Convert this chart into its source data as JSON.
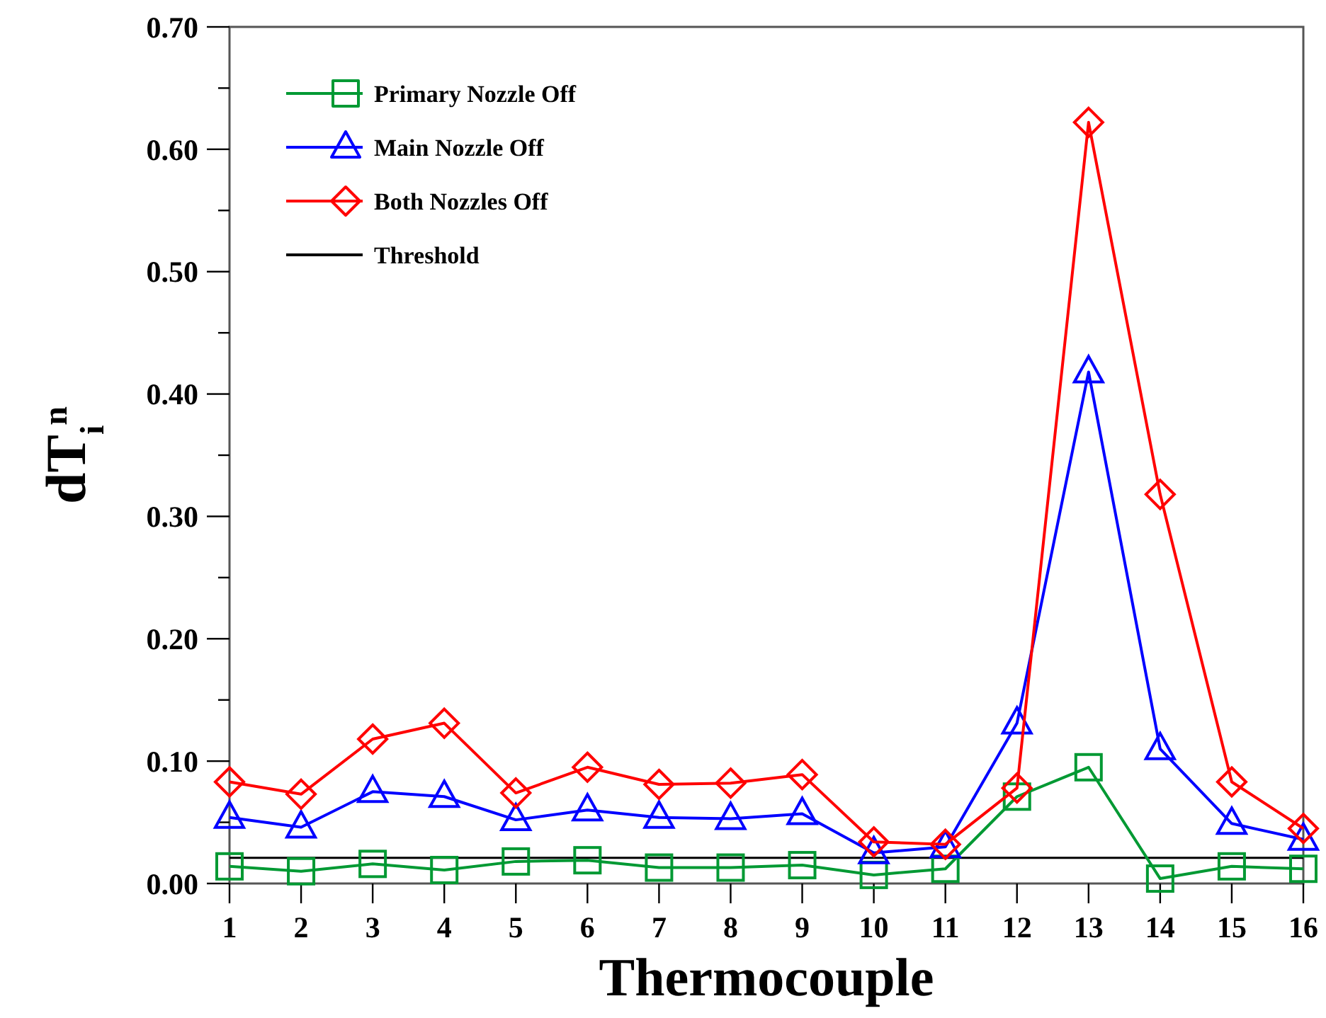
{
  "chart_data": {
    "type": "line",
    "xlabel": "Thermocouple",
    "ylabel": "dT$_{i}$$^{n}$",
    "x": [
      1,
      2,
      3,
      4,
      5,
      6,
      7,
      8,
      9,
      10,
      11,
      12,
      13,
      14,
      15,
      16
    ],
    "xlim": [
      1,
      16
    ],
    "xticks": [
      1,
      2,
      3,
      4,
      5,
      6,
      7,
      8,
      9,
      10,
      11,
      12,
      13,
      14,
      15,
      16
    ],
    "ylim": [
      0,
      0.7
    ],
    "yticks": [
      {
        "value": 0,
        "label": "0.00"
      },
      {
        "value": 0.05,
        "label": null
      },
      {
        "value": 0.1,
        "label": "0.10"
      },
      {
        "value": 0.15,
        "label": null
      },
      {
        "value": 0.2,
        "label": "0.20"
      },
      {
        "value": 0.25,
        "label": null
      },
      {
        "value": 0.3,
        "label": "0.30"
      },
      {
        "value": 0.35,
        "label": null
      },
      {
        "value": 0.4,
        "label": "0.40"
      },
      {
        "value": 0.45,
        "label": null
      },
      {
        "value": 0.5,
        "label": "0.50"
      },
      {
        "value": 0.55,
        "label": null
      },
      {
        "value": 0.6,
        "label": "0.60"
      },
      {
        "value": 0.65,
        "label": null
      },
      {
        "value": 0.7,
        "label": "0.70"
      }
    ],
    "grid": false,
    "legend": "top left",
    "series": [
      {
        "name": "Primary Nozzle Off",
        "color": "#009933",
        "marker": "square",
        "values": [
          0.014,
          0.01,
          0.016,
          0.011,
          0.018,
          0.019,
          0.013,
          0.013,
          0.015,
          0.007,
          0.012,
          0.071,
          0.095,
          0.004,
          0.014,
          0.012
        ]
      },
      {
        "name": "Main Nozzle Off",
        "color": "#0000ff",
        "marker": "triangle",
        "values": [
          0.054,
          0.046,
          0.075,
          0.071,
          0.052,
          0.06,
          0.054,
          0.053,
          0.057,
          0.025,
          0.03,
          0.131,
          0.418,
          0.11,
          0.049,
          0.036
        ]
      },
      {
        "name": "Both Nozzles Off",
        "color": "#ff0000",
        "marker": "diamond",
        "values": [
          0.083,
          0.073,
          0.118,
          0.131,
          0.074,
          0.095,
          0.081,
          0.082,
          0.089,
          0.034,
          0.032,
          0.078,
          0.622,
          0.318,
          0.083,
          0.045
        ]
      }
    ],
    "ref_lines": [
      {
        "axis": "y",
        "value": 0.021,
        "label": "Threshold",
        "color": "#000000"
      }
    ]
  }
}
